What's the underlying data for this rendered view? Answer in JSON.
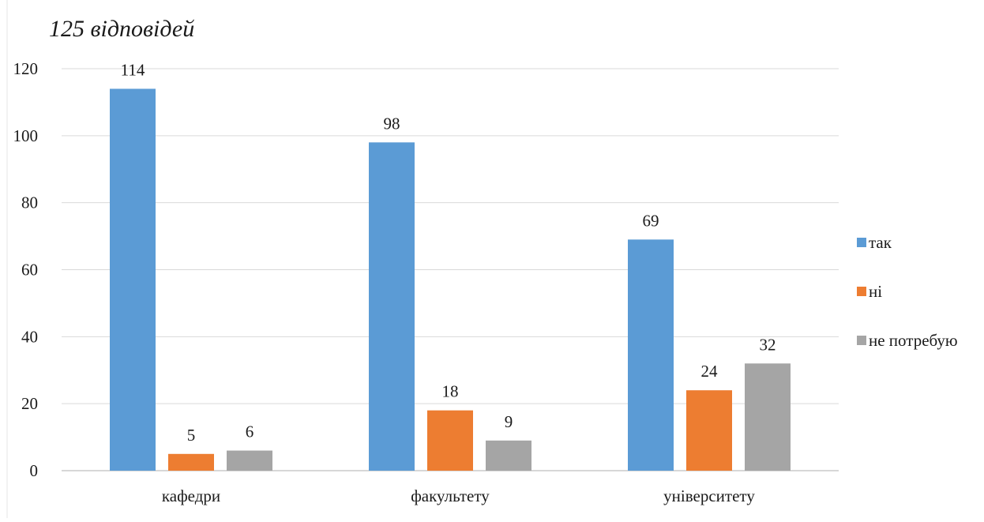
{
  "chart_data": {
    "type": "bar",
    "title": "125 відповідей",
    "categories": [
      "кафедри",
      "факультету",
      "університету"
    ],
    "series": [
      {
        "name": "так",
        "values": [
          114,
          98,
          69
        ],
        "color": "#5b9bd5"
      },
      {
        "name": "ні",
        "values": [
          5,
          18,
          24
        ],
        "color": "#ed7d31"
      },
      {
        "name": "не потребую",
        "values": [
          6,
          9,
          32
        ],
        "color": "#a5a5a5"
      }
    ],
    "ylim": [
      0,
      120
    ],
    "yticks": [
      0,
      20,
      40,
      60,
      80,
      100,
      120
    ],
    "grid": true,
    "data_labels": true,
    "legend_position": "right"
  }
}
